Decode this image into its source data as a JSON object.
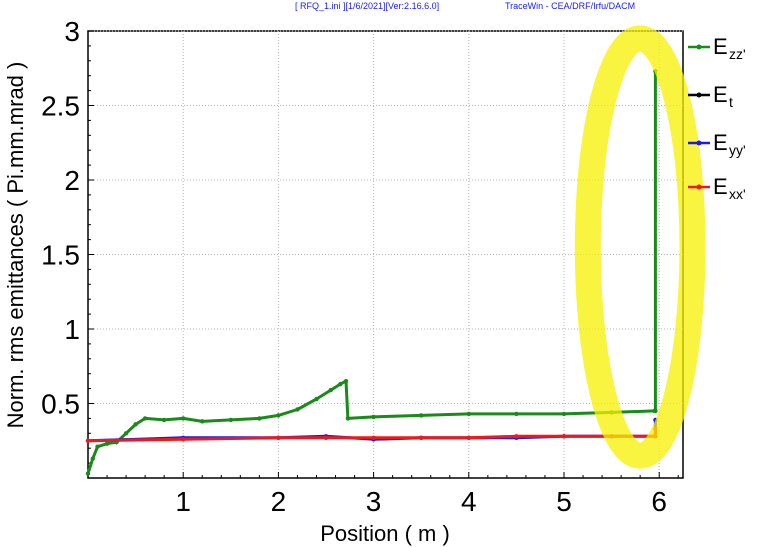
{
  "header": {
    "file_info": "[ RFQ_1.ini ][1/6/2021][Ver:2.16.6.0]",
    "app_info": "TraceWin - CEA/DRF/Irfu/DACM"
  },
  "chart_data": {
    "type": "line",
    "xlabel": "Position ( m )",
    "ylabel": "Norm. rms emittances ( Pi.mm.mrad )",
    "xlim": [
      0,
      6.25
    ],
    "ylim": [
      0,
      3
    ],
    "x_ticks": [
      "1",
      "2",
      "3",
      "4",
      "5",
      "6"
    ],
    "y_ticks": [
      "0.5",
      "1",
      "1.5",
      "2",
      "2.5",
      "3"
    ],
    "grid": true,
    "legend_position": "right",
    "legend": [
      {
        "base": "E",
        "sub": "zz'",
        "color": "#1a8a1a"
      },
      {
        "base": "E",
        "sub": "t",
        "color": "#000000"
      },
      {
        "base": "E",
        "sub": "yy'",
        "color": "#1a1aee"
      },
      {
        "base": "E",
        "sub": "xx'",
        "color": "#ee1a1a"
      }
    ],
    "series": [
      {
        "name": "E_zz'",
        "color": "#1a8a1a",
        "x": [
          0,
          0.05,
          0.1,
          0.2,
          0.3,
          0.4,
          0.5,
          0.6,
          0.8,
          1.0,
          1.2,
          1.5,
          1.8,
          2.0,
          2.2,
          2.4,
          2.55,
          2.65,
          2.71,
          2.73,
          3.0,
          3.5,
          4.0,
          4.5,
          5.0,
          5.5,
          5.95,
          5.96,
          5.96
        ],
        "y": [
          0.03,
          0.13,
          0.21,
          0.23,
          0.24,
          0.3,
          0.36,
          0.4,
          0.39,
          0.4,
          0.38,
          0.39,
          0.4,
          0.42,
          0.46,
          0.53,
          0.59,
          0.63,
          0.65,
          0.4,
          0.41,
          0.42,
          0.43,
          0.43,
          0.43,
          0.44,
          0.45,
          0.45,
          2.73
        ]
      },
      {
        "name": "E_yy'",
        "color": "#1a1aee",
        "x": [
          0,
          1.0,
          2.0,
          2.5,
          3.0,
          3.5,
          4.0,
          4.5,
          5.0,
          5.5,
          5.96,
          5.96
        ],
        "y": [
          0.25,
          0.27,
          0.27,
          0.28,
          0.26,
          0.27,
          0.27,
          0.27,
          0.28,
          0.28,
          0.28,
          0.39
        ]
      },
      {
        "name": "E_xx'",
        "color": "#ee1a1a",
        "x": [
          0,
          1.0,
          2.0,
          2.5,
          3.0,
          3.5,
          4.0,
          4.5,
          5.0,
          5.5,
          5.96,
          5.96
        ],
        "y": [
          0.25,
          0.26,
          0.27,
          0.27,
          0.27,
          0.27,
          0.27,
          0.28,
          0.28,
          0.28,
          0.28,
          0.33
        ]
      }
    ],
    "highlight": {
      "shape": "ellipse",
      "color": "#f5f000",
      "x_center": 5.8,
      "y_center": 1.55,
      "x_radius": 0.55,
      "y_radius": 1.4
    }
  }
}
